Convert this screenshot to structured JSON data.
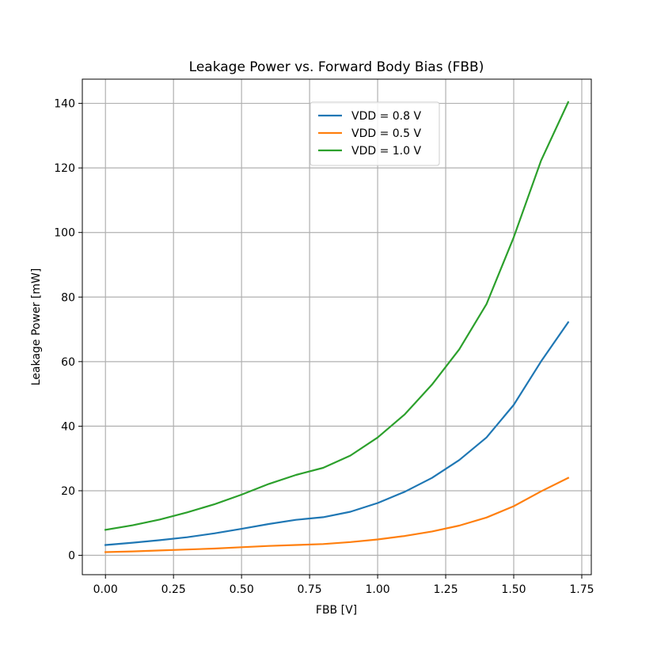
{
  "chart_data": {
    "type": "line",
    "title": "Leakage Power vs. Forward Body Bias (FBB)",
    "xlabel": "FBB [V]",
    "ylabel": "Leakage Power [mW]",
    "xlim": [
      -0.085,
      1.785
    ],
    "ylim": [
      -6,
      147.5
    ],
    "xticks": [
      0.0,
      0.25,
      0.5,
      0.75,
      1.0,
      1.25,
      1.5,
      1.75
    ],
    "xtick_labels": [
      "0.00",
      "0.25",
      "0.50",
      "0.75",
      "1.00",
      "1.25",
      "1.50",
      "1.75"
    ],
    "yticks": [
      0,
      20,
      40,
      60,
      80,
      100,
      120,
      140
    ],
    "ytick_labels": [
      "0",
      "20",
      "40",
      "60",
      "80",
      "100",
      "120",
      "140"
    ],
    "grid": true,
    "legend_position": "upper-center",
    "x": [
      0.0,
      0.1,
      0.2,
      0.3,
      0.4,
      0.5,
      0.6,
      0.7,
      0.8,
      0.9,
      1.0,
      1.1,
      1.2,
      1.3,
      1.4,
      1.5,
      1.6,
      1.7
    ],
    "series": [
      {
        "name": "VDD = 0.8 V",
        "color": "#1f77b4",
        "values": [
          3.2,
          3.9,
          4.7,
          5.6,
          6.8,
          8.2,
          9.7,
          11.0,
          11.8,
          13.5,
          16.2,
          19.7,
          24.0,
          29.5,
          36.5,
          46.6,
          60.0,
          72.2
        ]
      },
      {
        "name": "VDD = 0.5 V",
        "color": "#ff7f0e",
        "values": [
          1.0,
          1.2,
          1.5,
          1.8,
          2.1,
          2.5,
          2.9,
          3.2,
          3.5,
          4.1,
          4.9,
          6.0,
          7.4,
          9.2,
          11.7,
          15.2,
          19.8,
          24.0
        ]
      },
      {
        "name": "VDD = 1.0 V",
        "color": "#2ca02c",
        "values": [
          7.9,
          9.3,
          11.1,
          13.3,
          15.8,
          18.8,
          22.1,
          24.9,
          27.1,
          30.9,
          36.5,
          43.7,
          52.9,
          63.8,
          77.8,
          98.5,
          122.2,
          140.4
        ]
      }
    ]
  }
}
